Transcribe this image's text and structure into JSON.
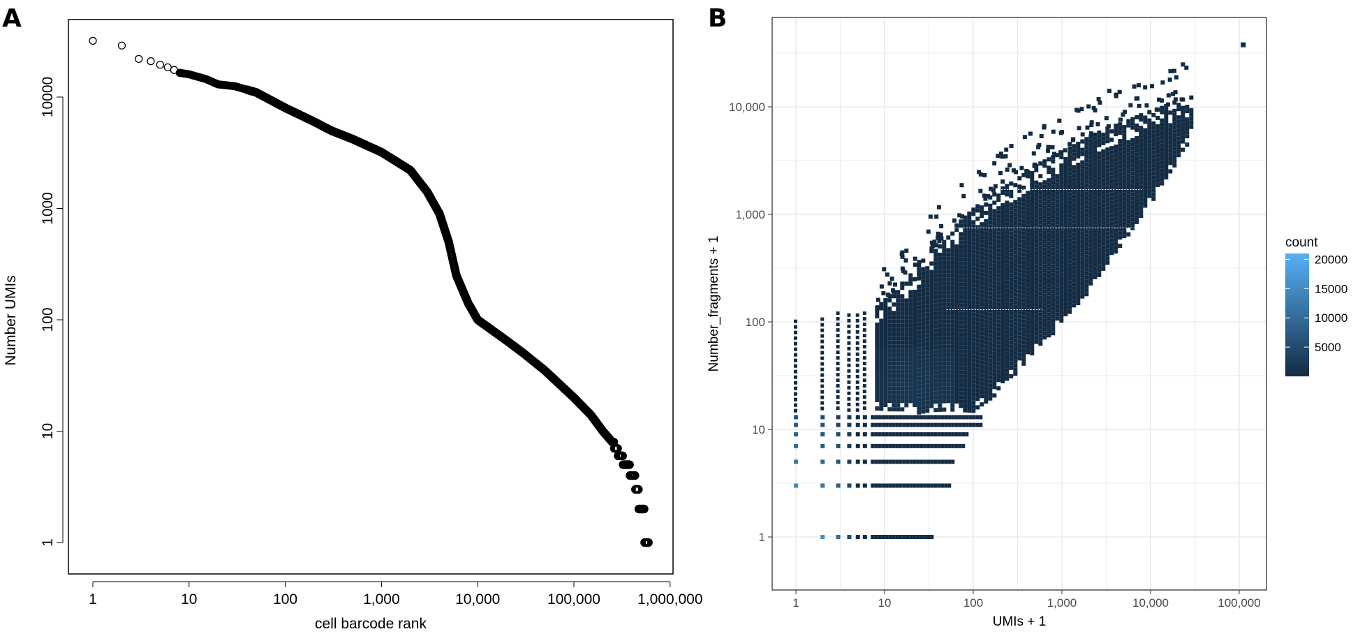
{
  "panels": {
    "a_label": "A",
    "b_label": "B"
  },
  "chart_data": [
    {
      "type": "scatter",
      "panel": "A",
      "title": "",
      "xlabel": "cell barcode rank",
      "ylabel": "Number UMIs",
      "xscale": "log10",
      "yscale": "log10",
      "xlim": [
        1,
        1000000
      ],
      "ylim": [
        1,
        32000
      ],
      "xticks": [
        1,
        10,
        100,
        1000,
        10000,
        100000,
        1000000
      ],
      "xtick_labels": [
        "1",
        "10",
        "100",
        "1,000",
        "10,000",
        "100,000",
        "1,000,000"
      ],
      "yticks": [
        1,
        10,
        100,
        1000,
        10000
      ],
      "ytick_labels": [
        "1",
        "10",
        "100",
        "1000",
        "10000"
      ],
      "marker": "open-circle",
      "series": [
        {
          "name": "barcode rank curve",
          "x": [
            1,
            2,
            3,
            4,
            5,
            6,
            7,
            8,
            10,
            15,
            20,
            30,
            50,
            100,
            200,
            300,
            500,
            1000,
            2000,
            3000,
            4000,
            5000,
            6000,
            8000,
            10000,
            20000,
            30000,
            50000,
            100000,
            150000,
            200000,
            250000,
            300000,
            350000,
            420000,
            500000,
            600000
          ],
          "y": [
            32000,
            29000,
            22000,
            21000,
            19500,
            18500,
            17500,
            16500,
            16000,
            14500,
            13000,
            12500,
            11000,
            8000,
            6000,
            5000,
            4200,
            3200,
            2200,
            1400,
            900,
            500,
            250,
            140,
            100,
            65,
            50,
            35,
            20,
            14,
            10,
            8,
            6,
            5,
            4,
            2,
            1
          ]
        }
      ]
    },
    {
      "type": "heatmap",
      "panel": "B",
      "xlabel": "UMIs + 1",
      "ylabel": "Number_fragments + 1",
      "xscale": "log10",
      "yscale": "log10",
      "xlim": [
        0.7,
        150000
      ],
      "ylim": [
        0.7,
        60000
      ],
      "xticks": [
        1,
        10,
        100,
        1000,
        10000,
        100000
      ],
      "xtick_labels": [
        "1",
        "10",
        "100",
        "1,000",
        "10,000",
        "100,000"
      ],
      "yticks": [
        1,
        10,
        100,
        1000,
        10000
      ],
      "ytick_labels": [
        "1",
        "10",
        "100",
        "1,000",
        "10,000"
      ],
      "grid": true,
      "legend": {
        "title": "count",
        "placement": "right",
        "ticks": [
          20000,
          15000,
          10000,
          5000
        ],
        "tick_labels": [
          "20000",
          "15000",
          "10000",
          "5000"
        ],
        "range": [
          1,
          21000
        ],
        "low_color": "#132b43",
        "high_color": "#56b1f7"
      },
      "density_envelope": {
        "x": [
          7,
          10,
          20,
          30,
          50,
          100,
          200,
          300,
          500,
          1000,
          2000,
          3000,
          5000,
          8000,
          12000,
          20000,
          30000
        ],
        "y_low": [
          15,
          15,
          15,
          15,
          15,
          15,
          25,
          35,
          60,
          100,
          200,
          350,
          600,
          1000,
          1800,
          3500,
          6000
        ],
        "y_high": [
          130,
          170,
          300,
          450,
          700,
          1200,
          1800,
          2200,
          3000,
          4000,
          5500,
          6500,
          7500,
          9000,
          10000,
          12000,
          13000
        ]
      },
      "discrete_columns": {
        "x": [
          1,
          2,
          3,
          4,
          5,
          6
        ],
        "y_max": [
          105,
          110,
          125,
          120,
          120,
          125
        ]
      },
      "discrete_rows": {
        "y": [
          1,
          3,
          5,
          7,
          9,
          11,
          13
        ],
        "x_max": [
          33,
          55,
          60,
          80,
          85,
          120,
          120
        ]
      },
      "outlier": {
        "x": 110000,
        "y": 38000
      }
    }
  ]
}
